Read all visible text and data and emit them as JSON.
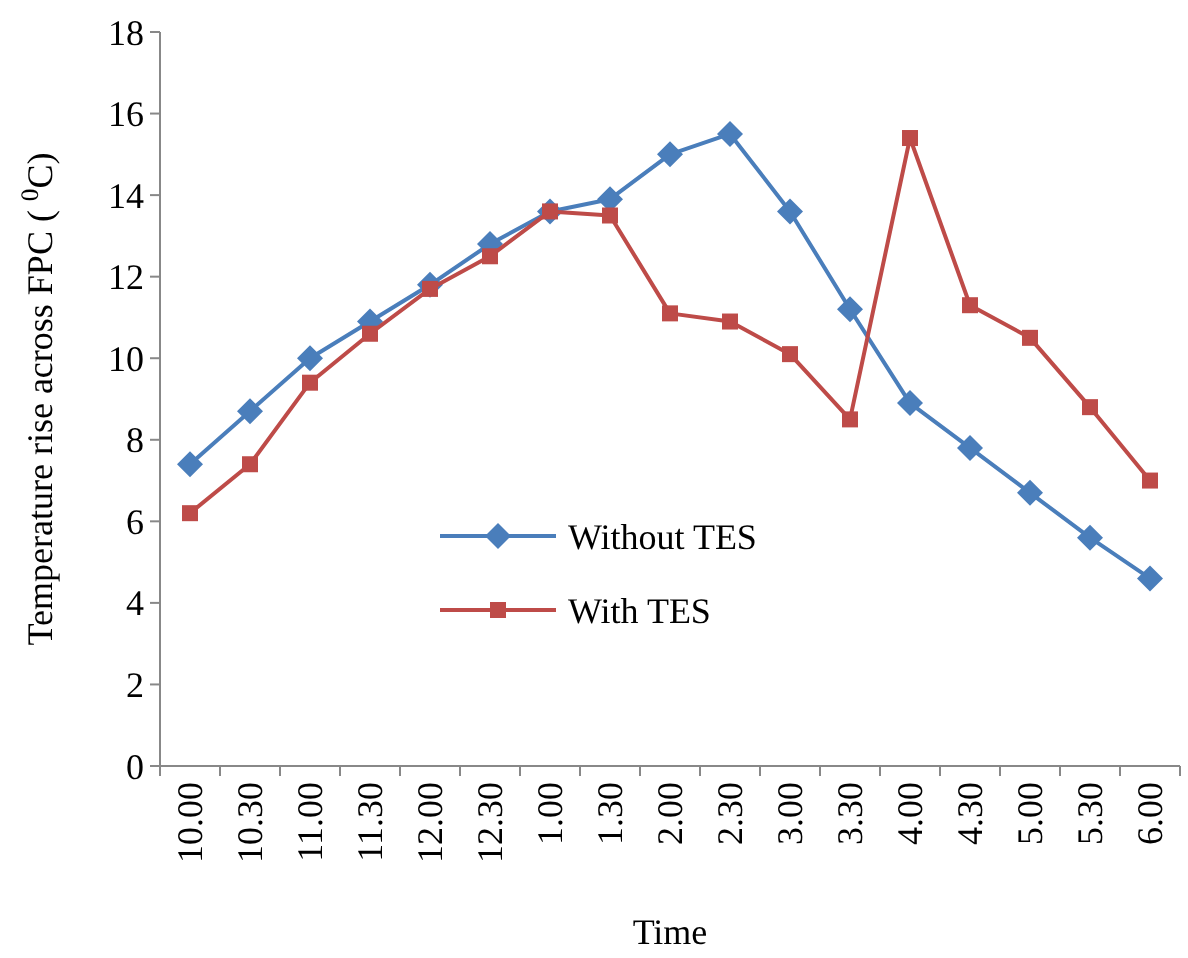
{
  "chart_data": {
    "type": "line",
    "xlabel": "Time",
    "ylabel": "Temperature rise across FPC ( $^{0}$C)",
    "categories": [
      "10.00",
      "10.30",
      "11.00",
      "11.30",
      "12.00",
      "12.30",
      "1.00",
      "1.30",
      "2.00",
      "2.30",
      "3.00",
      "3.30",
      "4.00",
      "4.30",
      "5.00",
      "5.30",
      "6.00"
    ],
    "ylim": [
      0,
      18
    ],
    "yticks": [
      0,
      2,
      4,
      6,
      8,
      10,
      12,
      14,
      16,
      18
    ],
    "grid": false,
    "legend": "center",
    "series": [
      {
        "name": "Without TES",
        "color": "#4a7ebb",
        "marker": "diamond",
        "values": [
          7.4,
          8.7,
          10.0,
          10.9,
          11.8,
          12.8,
          13.6,
          13.9,
          15.0,
          15.5,
          13.6,
          11.2,
          8.9,
          7.8,
          6.7,
          5.6,
          4.6
        ]
      },
      {
        "name": "With TES",
        "color": "#be4b48",
        "marker": "square",
        "values": [
          6.2,
          7.4,
          9.4,
          10.6,
          11.7,
          12.5,
          13.6,
          13.5,
          11.1,
          10.9,
          10.1,
          8.5,
          15.4,
          11.3,
          10.5,
          8.8,
          7.0
        ]
      }
    ]
  }
}
